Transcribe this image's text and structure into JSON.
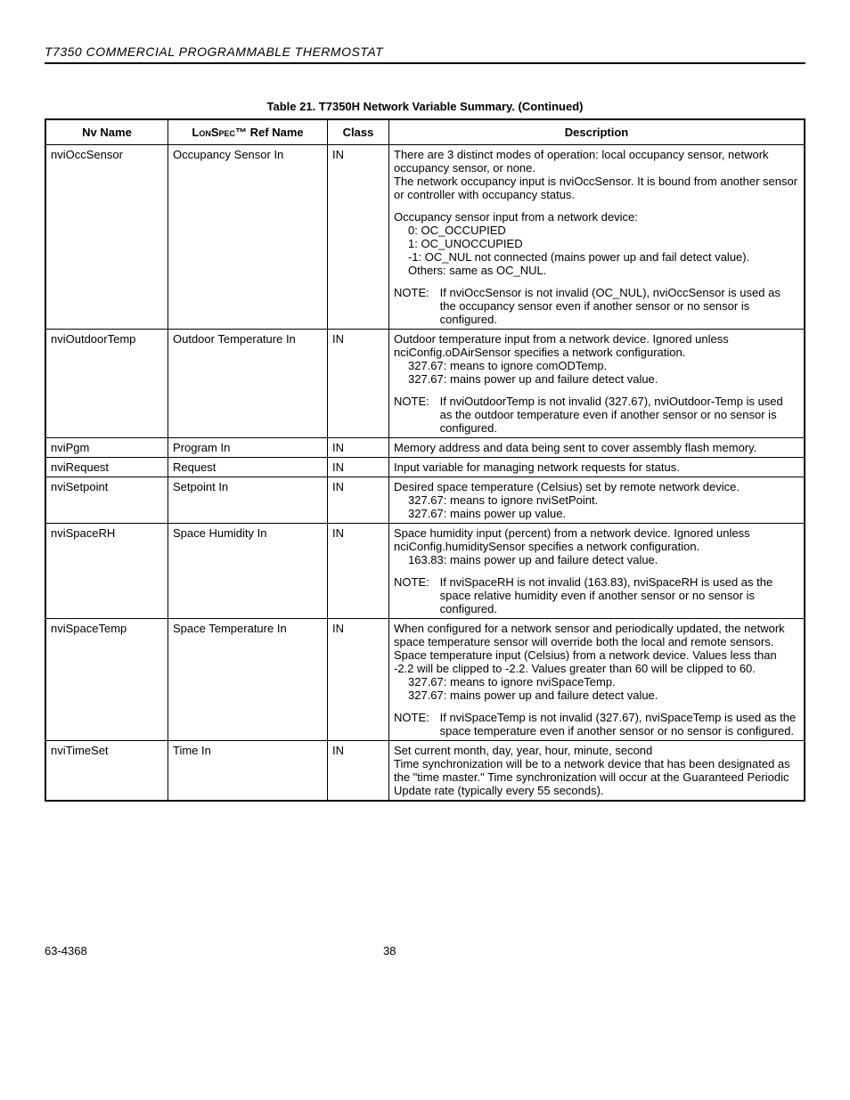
{
  "header": "T7350 COMMERCIAL PROGRAMMABLE THERMOSTAT",
  "tableTitle": "Table 21. T7350H Network Variable Summary. (Continued)",
  "cols": {
    "nv": "Nv Name",
    "ref_pre": "Lon",
    "ref_mid": "Spec",
    "ref_post": "™ Ref Name",
    "cls": "Class",
    "desc": "Description"
  },
  "rows": [
    {
      "nv": "nviOccSensor",
      "ref": "Occupancy Sensor In",
      "cls": "IN",
      "p1": "There are 3 distinct modes of operation: local occupancy sensor, network occupancy sensor, or none.",
      "p2": "The network occupancy input is nviOccSensor. It is bound from another sensor or controller with occupancy status.",
      "p3": "Occupancy sensor input from a network device:",
      "i1": "0: OC_OCCUPIED",
      "i2": "1: OC_UNOCCUPIED",
      "i3": "-1: OC_NUL not connected (mains power up and fail detect value).",
      "i4": "Others: same as OC_NUL.",
      "noteLabel": "NOTE:",
      "note": "If nviOccSensor is not invalid (OC_NUL), nviOccSensor is used as the occupancy sensor even if another sensor or no sensor is configured."
    },
    {
      "nv": "nviOutdoorTemp",
      "ref": "Outdoor Temperature In",
      "cls": "IN",
      "p1": "Outdoor temperature input from a network device. Ignored unless nciConfig.oDAirSensor specifies a network configuration.",
      "i1": "327.67: means to ignore comODTemp.",
      "i2": "327.67: mains power up and failure detect value.",
      "noteLabel": "NOTE:",
      "note": "If nviOutdoorTemp is not invalid (327.67), nviOutdoor-Temp is used as the outdoor temperature even if another sensor or no sensor is configured."
    },
    {
      "nv": "nviPgm",
      "ref": "Program In",
      "cls": "IN",
      "p1": "Memory address and data being sent to cover assembly flash memory."
    },
    {
      "nv": "nviRequest",
      "ref": "Request",
      "cls": "IN",
      "p1": "Input variable for managing network requests for status."
    },
    {
      "nv": "nviSetpoint",
      "ref": "Setpoint In",
      "cls": "IN",
      "p1": "Desired space temperature (Celsius) set by remote network device.",
      "i1": "327.67: means to ignore nviSetPoint.",
      "i2": "327.67: mains power up value."
    },
    {
      "nv": "nviSpaceRH",
      "ref": "Space Humidity In",
      "cls": "IN",
      "p1": "Space humidity input (percent) from a network device. Ignored unless nciConfig.humiditySensor specifies a network configuration.",
      "i1": "163.83: mains power up and failure detect value.",
      "noteLabel": "NOTE:",
      "note": "If nviSpaceRH is not invalid (163.83), nviSpaceRH is used as the space relative humidity even if another sensor or no sensor is configured."
    },
    {
      "nv": "nviSpaceTemp",
      "ref": "Space Temperature In",
      "cls": "IN",
      "p1": "When configured for a network sensor and periodically updated, the network space temperature sensor will override both the local and remote sensors.",
      "p2": "Space temperature input (Celsius) from a network device. Values less than -2.2 will be clipped to -2.2. Values greater than 60 will be clipped to 60.",
      "i1": "327.67: means to ignore nviSpaceTemp.",
      "i2": "327.67: mains power up and failure detect value.",
      "noteLabel": "NOTE:",
      "note": "If nviSpaceTemp is not invalid (327.67), nviSpaceTemp is used as the space temperature even if another sensor or no sensor is configured."
    },
    {
      "nv": "nviTimeSet",
      "ref": "Time In",
      "cls": "IN",
      "p1": "Set current month, day, year, hour, minute, second",
      "p2": "Time synchronization will be to a network device that has been designated as the \"time master.\" Time synchronization will occur at the Guaranteed Periodic Update rate (typically every 55 seconds)."
    }
  ],
  "footer": {
    "doc": "63-4368",
    "page": "38"
  }
}
